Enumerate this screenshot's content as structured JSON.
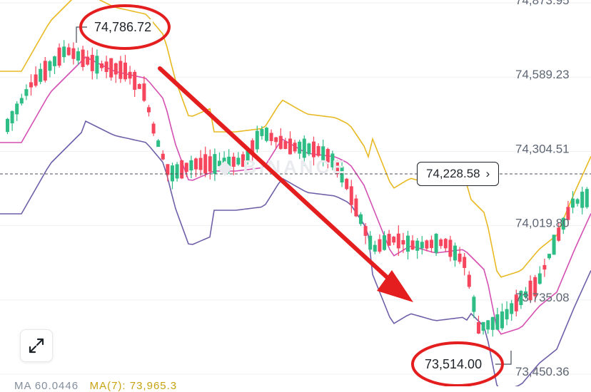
{
  "chart_data": {
    "type": "candlestick",
    "price_axis_labels": [
      "74,873.95",
      "74,589.23",
      "74,304.51",
      "74,019.80",
      "73,735.08",
      "73,450.36"
    ],
    "current_price": "74,228.58",
    "annotations": {
      "high_label": "74,786.72",
      "low_label": "73,514.00"
    },
    "colors": {
      "up": "#2ebd85",
      "down": "#f6465d",
      "upper_band": "#e8b923",
      "middle_band": "#d44fb2",
      "lower_band": "#6f5fa8",
      "arrow": "#e41e1e",
      "circle": "#e41e1e"
    }
  },
  "controls": {
    "current_price_chevron": "›",
    "expand_icon": "expand-icon"
  },
  "footer_cut_text": {
    "a": "MA 60.0446",
    "b": "MA(7): 73,965.3"
  }
}
